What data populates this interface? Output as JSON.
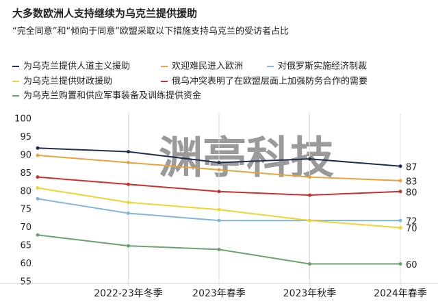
{
  "chart_data": {
    "type": "line",
    "title": "大多数欧洲人支持继续为乌克兰提供援助",
    "subtitle": "“完全同意”和“倾向于同意”欧盟采取以下措施支持乌克兰的受访者占比",
    "watermark": "渊亭科技",
    "categories": [
      null,
      "2022-23年冬季",
      "2023年春季",
      "2023年秋季",
      "2024年春季"
    ],
    "series": [
      {
        "name": "为乌克兰提供人道主义援助",
        "color": "#1f2d4e",
        "values": [
          92,
          91,
          88,
          89,
          87
        ]
      },
      {
        "name": "欢迎难民进入欧洲",
        "color": "#e8a33d",
        "values": [
          90,
          88,
          86,
          84,
          83
        ]
      },
      {
        "name": "对俄罗斯实施经济制裁",
        "color": "#7fb6e0",
        "values": [
          78,
          74,
          72,
          72,
          72
        ]
      },
      {
        "name": "为乌克兰提供财政援助",
        "color": "#f2d230",
        "values": [
          81,
          77,
          75,
          72,
          70
        ]
      },
      {
        "name": "俄乌冲突表明了在欧盟层面上加强防务合作的需要",
        "color": "#c9302c",
        "values": [
          84,
          82,
          80,
          79,
          80
        ]
      },
      {
        "name": "为乌克兰购置和供应军事装备及训练提供资金",
        "color": "#6aa36f",
        "values": [
          68,
          65,
          64,
          60,
          60
        ]
      }
    ],
    "ylim": [
      55,
      100
    ],
    "yticks": [
      55,
      60,
      65,
      70,
      75,
      80,
      85,
      90,
      95,
      100
    ],
    "grid": true
  }
}
